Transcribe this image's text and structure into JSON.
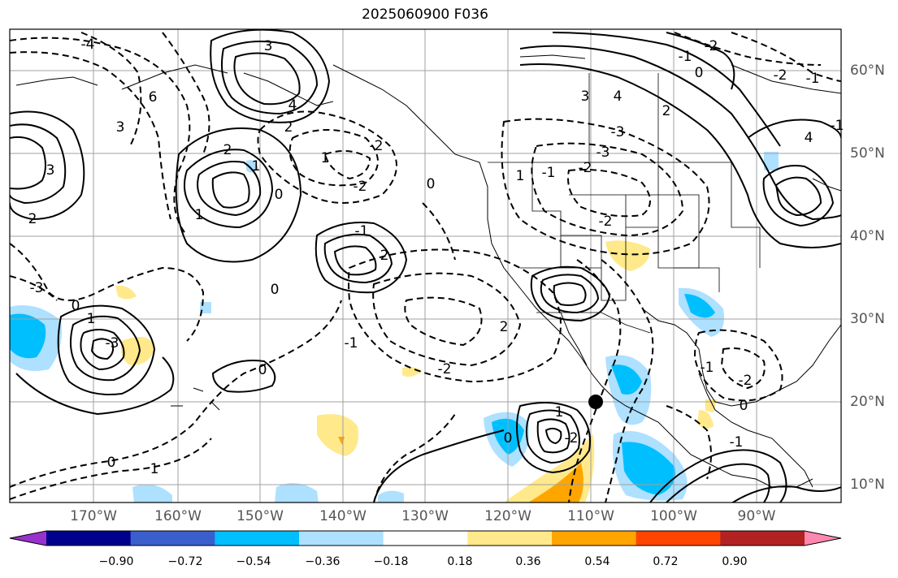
{
  "title": "2025060900 F036",
  "map": {
    "lon_labels": [
      "170°W",
      "160°W",
      "150°W",
      "140°W",
      "130°W",
      "120°W",
      "110°W",
      "100°W",
      "90°W"
    ],
    "lat_labels": [
      "60°N",
      "50°N",
      "40°N",
      "30°N",
      "20°N",
      "10°N"
    ],
    "lon_range": [
      -180,
      -80
    ],
    "lat_range": [
      8,
      65
    ],
    "storm_marker": {
      "lon": -109.5,
      "lat": 20
    },
    "contour_labels": [
      "3",
      "4",
      "2",
      "6",
      "3",
      "1",
      "2",
      "1",
      "0",
      "3",
      "-2",
      "-2",
      "0",
      "1",
      "-1",
      "2",
      "1",
      "0",
      "2",
      "-3",
      "0",
      "-1",
      "-3",
      "-2",
      "1",
      "0",
      "-2",
      "-1",
      "-4",
      "3",
      "4",
      "-2",
      "0",
      "-1",
      "4",
      "-3",
      "-1",
      "-2",
      "2",
      "-1",
      "-2",
      "-3",
      "1",
      "0",
      "-1",
      "-2",
      "1",
      "2",
      "0",
      "-2",
      "-1",
      "0"
    ],
    "shade_colors": {
      "neg_strong": "#00bfff",
      "neg_weak": "#aee0ff",
      "pos_weak": "#ffe98a",
      "pos_mid": "#ffa500"
    }
  },
  "colorbar": {
    "colors": [
      "#9932cc",
      "#00008b",
      "#3a5fcd",
      "#00bfff",
      "#aee0ff",
      "#ffffff",
      "#ffe98a",
      "#ffa500",
      "#ff4500",
      "#b22222",
      "#ff88b0"
    ],
    "tick_labels": [
      "−0.90",
      "−0.72",
      "−0.54",
      "−0.36",
      "−0.18",
      "0.18",
      "0.36",
      "0.54",
      "0.72",
      "0.90"
    ]
  }
}
